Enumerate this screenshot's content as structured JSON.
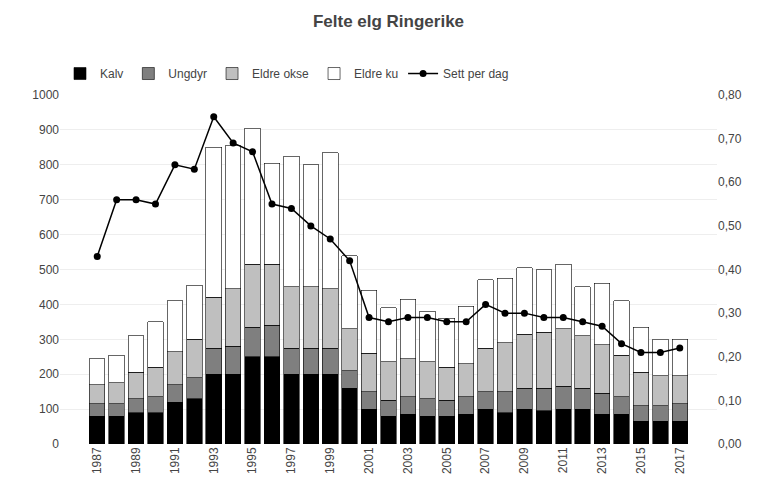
{
  "chart_data": {
    "type": "bar",
    "title": "Felte elg Ringerike",
    "stacked": true,
    "categories": [
      "1987",
      null,
      "1989",
      null,
      "1991",
      null,
      "1993",
      null,
      "1995",
      null,
      "1997",
      null,
      "1999",
      null,
      "2001",
      null,
      "2003",
      null,
      "2005",
      null,
      "2007",
      null,
      "2009",
      null,
      "2011",
      null,
      "2013",
      null,
      "2015",
      null,
      "2017"
    ],
    "series": [
      {
        "name": "Kalv",
        "color": "#000000",
        "values": [
          80,
          80,
          90,
          90,
          120,
          130,
          200,
          200,
          250,
          250,
          200,
          200,
          200,
          160,
          100,
          80,
          85,
          80,
          80,
          85,
          100,
          90,
          100,
          95,
          100,
          100,
          85,
          85,
          65,
          65,
          65
        ]
      },
      {
        "name": "Ungdyr",
        "color": "#7f7f7f",
        "values": [
          35,
          35,
          40,
          45,
          50,
          60,
          75,
          80,
          85,
          90,
          75,
          75,
          75,
          50,
          50,
          45,
          50,
          50,
          45,
          50,
          50,
          60,
          60,
          65,
          65,
          60,
          60,
          50,
          45,
          45,
          50
        ]
      },
      {
        "name": "Eldre okse",
        "color": "#bfbfbf",
        "values": [
          55,
          60,
          75,
          85,
          95,
          110,
          145,
          165,
          180,
          175,
          175,
          175,
          170,
          120,
          110,
          110,
          110,
          105,
          95,
          95,
          125,
          140,
          155,
          160,
          165,
          150,
          140,
          120,
          95,
          85,
          80
        ]
      },
      {
        "name": "Eldre ku",
        "color": "#ffffff",
        "values": [
          75,
          80,
          105,
          130,
          145,
          155,
          430,
          410,
          390,
          290,
          375,
          350,
          390,
          210,
          180,
          155,
          170,
          145,
          140,
          165,
          195,
          185,
          190,
          180,
          185,
          140,
          175,
          155,
          130,
          105,
          105
        ]
      },
      {
        "name": "Sett per dag",
        "type": "line",
        "axis": "y2",
        "color": "#000000",
        "marker": "circle",
        "values": [
          0.43,
          0.56,
          0.56,
          0.55,
          0.64,
          0.63,
          0.75,
          0.69,
          0.67,
          0.55,
          0.54,
          0.5,
          0.47,
          0.42,
          0.29,
          0.28,
          0.29,
          0.29,
          0.28,
          0.28,
          0.32,
          0.3,
          0.3,
          0.29,
          0.29,
          0.28,
          0.27,
          0.23,
          0.21,
          0.21,
          0.22
        ]
      }
    ],
    "ylim": [
      0,
      1000
    ],
    "yticks": [
      0,
      100,
      200,
      300,
      400,
      500,
      600,
      700,
      800,
      900,
      1000
    ],
    "y2lim": [
      0.0,
      0.8
    ],
    "y2ticks": [
      {
        "value": 0.0,
        "label": "0,00"
      },
      {
        "value": 0.1,
        "label": "0,10"
      },
      {
        "value": 0.2,
        "label": "0,20"
      },
      {
        "value": 0.3,
        "label": "0,30"
      },
      {
        "value": 0.4,
        "label": "0,40"
      },
      {
        "value": 0.5,
        "label": "0,50"
      },
      {
        "value": 0.6,
        "label": "0,60"
      },
      {
        "value": 0.7,
        "label": "0,70"
      },
      {
        "value": 0.8,
        "label": "0,80"
      }
    ],
    "grid": true,
    "legend": "upper left"
  }
}
